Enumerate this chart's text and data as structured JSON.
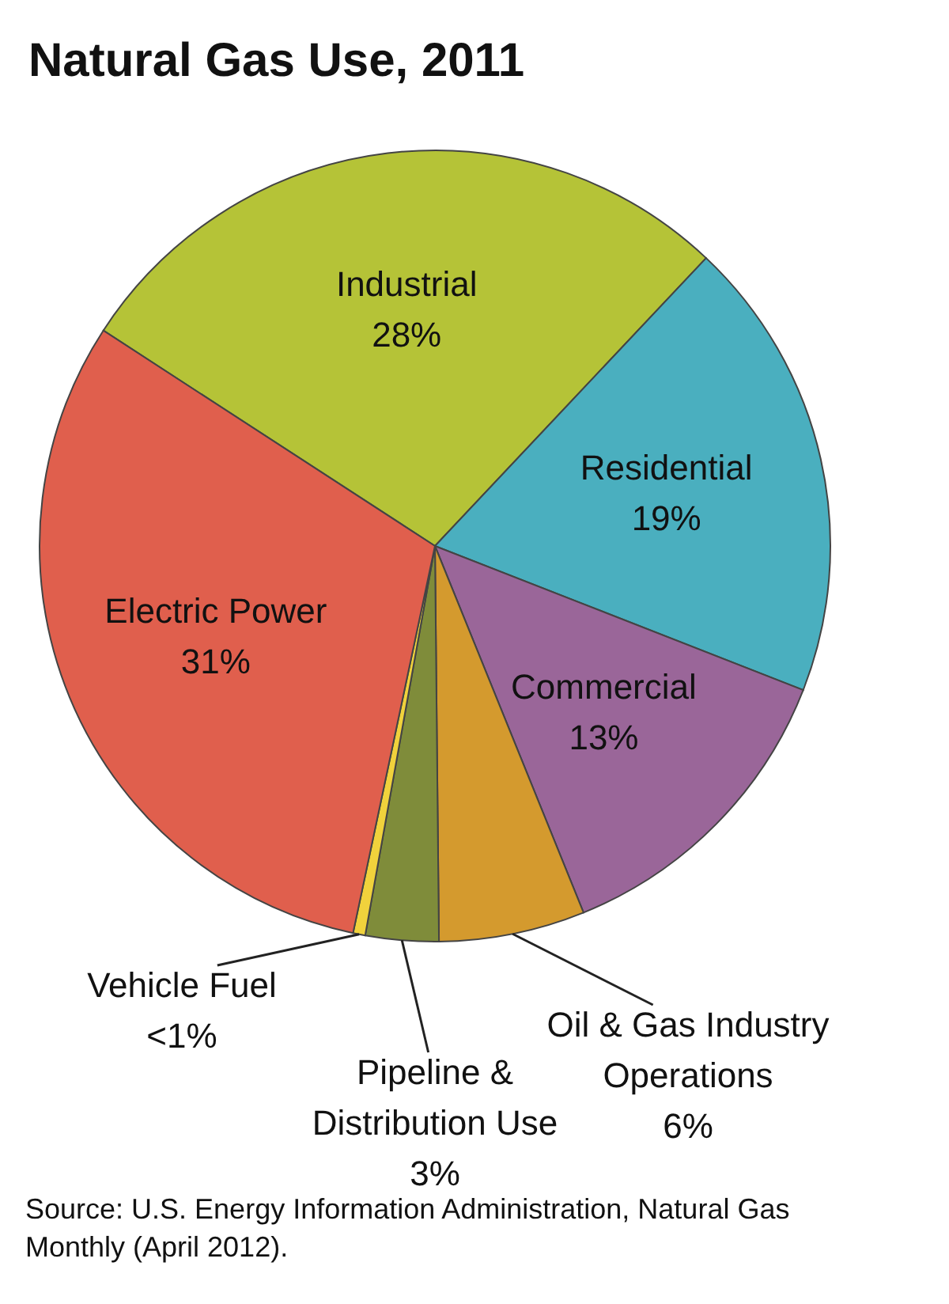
{
  "chart_data": {
    "type": "pie",
    "title": "Natural Gas Use, 2011",
    "categories": [
      "Industrial",
      "Residential",
      "Commercial",
      "Oil & Gas Industry Operations",
      "Pipeline & Distribution Use",
      "Vehicle Fuel",
      "Electric Power"
    ],
    "values": [
      28,
      19,
      13,
      6,
      3,
      0.5,
      31
    ],
    "value_labels": [
      "28%",
      "19%",
      "13%",
      "6%",
      "3%",
      "<1%",
      "31%"
    ],
    "colors": [
      "#b5c337",
      "#4aafbf",
      "#9a6699",
      "#d49a2e",
      "#7f8c3a",
      "#f0d23c",
      "#e05f4d"
    ],
    "annotations": [
      "Source: U.S. Energy Information Administration, Natural Gas Monthly (April 2012)."
    ]
  }
}
